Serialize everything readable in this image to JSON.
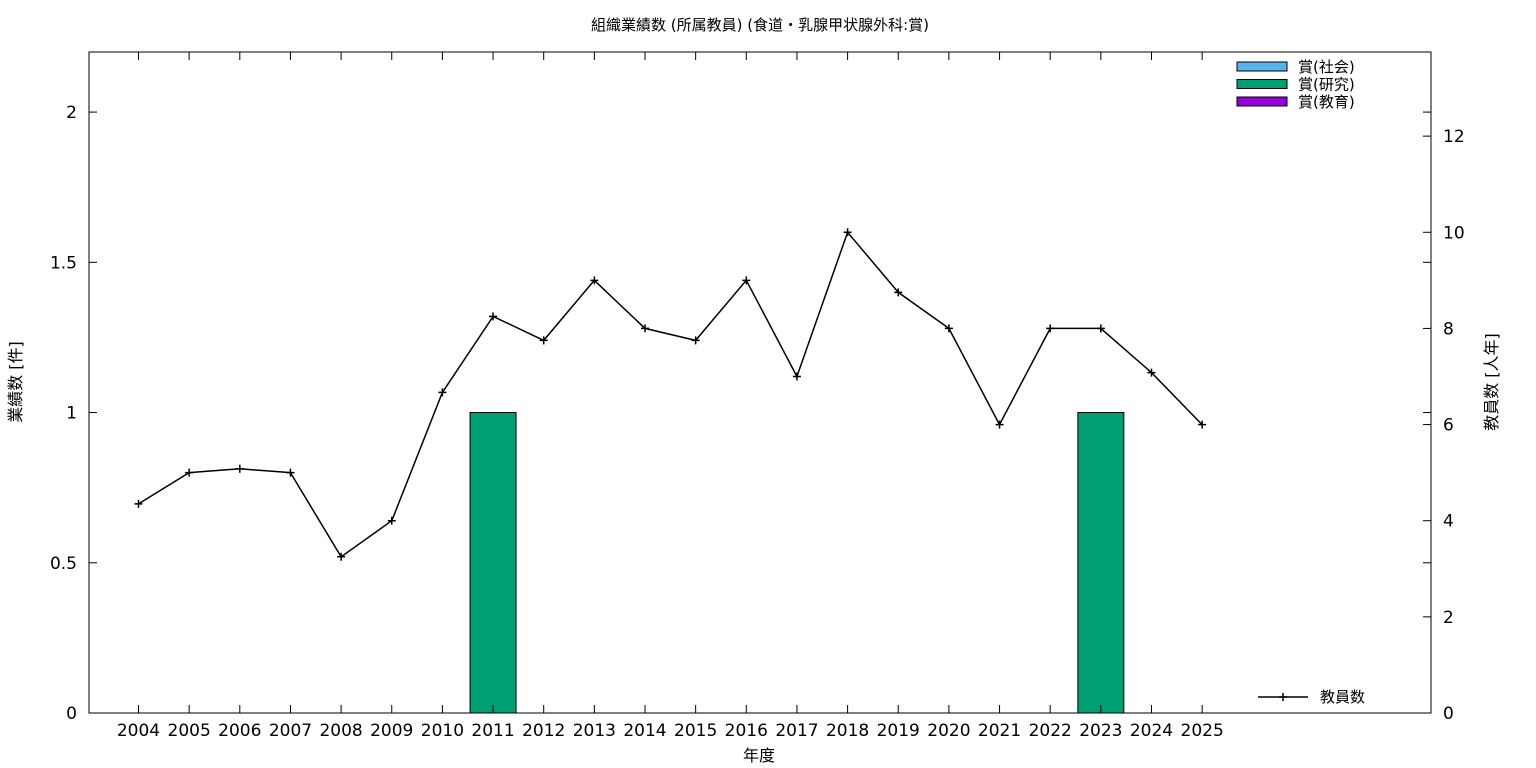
{
  "chart_data": {
    "type": "bar",
    "title": "組織業績数 (所属教員) (食道・乳腺甲状腺外科:賞)",
    "xlabel": "年度",
    "ylabel": "業績数 [件]",
    "y2label": "教員数 [人年]",
    "categories": [
      "2004",
      "2005",
      "2006",
      "2007",
      "2008",
      "2009",
      "2010",
      "2011",
      "2012",
      "2013",
      "2014",
      "2015",
      "2016",
      "2017",
      "2018",
      "2019",
      "2020",
      "2021",
      "2022",
      "2023",
      "2024",
      "2025"
    ],
    "ylim": [
      0,
      2.2
    ],
    "yticks": [
      "0",
      "0.5",
      "1",
      "1.5",
      "2"
    ],
    "y2lim": [
      0,
      13.75
    ],
    "y2ticks": [
      "0",
      "2",
      "4",
      "6",
      "8",
      "10",
      "12"
    ],
    "grid": false,
    "legend_position": "top-right",
    "series": [
      {
        "name": "賞(社会)",
        "kind": "bar",
        "color": "#56b4e9",
        "values": [
          0,
          0,
          0,
          0,
          0,
          0,
          0,
          0,
          0,
          0,
          0,
          0,
          0,
          0,
          0,
          0,
          0,
          0,
          0,
          0,
          0,
          0
        ]
      },
      {
        "name": "賞(研究)",
        "kind": "bar",
        "color": "#009e73",
        "values": [
          0,
          0,
          0,
          0,
          0,
          0,
          0,
          1,
          0,
          0,
          0,
          0,
          0,
          0,
          0,
          0,
          0,
          0,
          0,
          1,
          0,
          0
        ]
      },
      {
        "name": "賞(教育)",
        "kind": "bar",
        "color": "#9400d3",
        "values": [
          0,
          0,
          0,
          0,
          0,
          0,
          0,
          0,
          0,
          0,
          0,
          0,
          0,
          0,
          0,
          0,
          0,
          0,
          0,
          0,
          0,
          0
        ]
      },
      {
        "name": "教員数",
        "kind": "line",
        "axis": "y2",
        "color": "#000000",
        "values": [
          4.35,
          5.0,
          5.08,
          5.0,
          3.25,
          4.0,
          6.67,
          8.25,
          7.75,
          9.0,
          8.0,
          7.75,
          9.0,
          7.0,
          10.0,
          8.75,
          8.0,
          6.0,
          8.0,
          8.0,
          7.08,
          6.0
        ]
      }
    ]
  }
}
